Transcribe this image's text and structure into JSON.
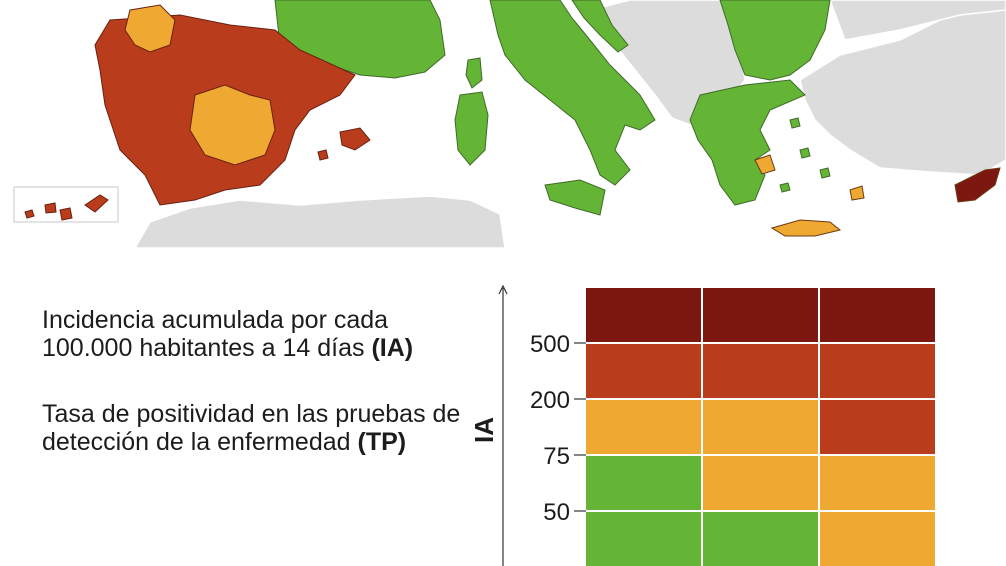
{
  "legend": {
    "ia_text": "Incidencia acumulada por cada 100.000 habitantes a 14 días",
    "ia_abbr": "(IA)",
    "tp_text": "Tasa de positividad en las pruebas de detección de la enfermedad",
    "tp_abbr": "(TP)"
  },
  "matrix": {
    "axis_label": "IA",
    "y_ticks": [
      "500",
      "200",
      "75",
      "50"
    ],
    "rows": [
      [
        "darkred",
        "darkred",
        "darkred"
      ],
      [
        "red",
        "red",
        "red"
      ],
      [
        "orange",
        "orange",
        "red"
      ],
      [
        "green",
        "orange",
        "orange"
      ],
      [
        "green",
        "green",
        "orange"
      ]
    ]
  },
  "colors": {
    "darkred": "#7d1712",
    "red": "#b93d1c",
    "orange": "#efa832",
    "green": "#64b535",
    "non_eu": "#dcdcdc",
    "sea": "#ffffff",
    "border": "#3f6a2a"
  }
}
